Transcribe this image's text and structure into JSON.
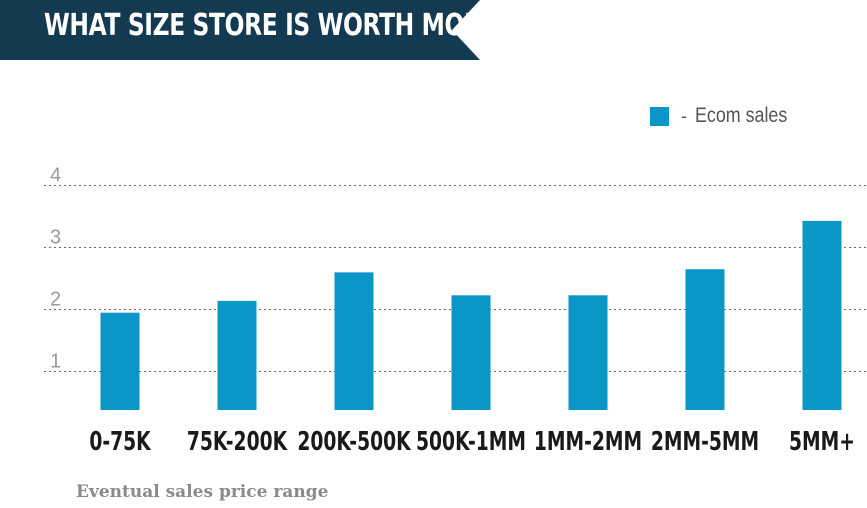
{
  "header": {
    "title": "WHAT SIZE STORE IS WORTH MORE?"
  },
  "colors": {
    "banner": "#143a52",
    "bar": "#0a97c8",
    "grid": "#6a6a6a",
    "tick": "#9a9a9a",
    "category": "#1a1a1a"
  },
  "chart_data": {
    "type": "bar",
    "title": "WHAT SIZE STORE IS WORTH MORE?",
    "xlabel": "Eventual sales price range",
    "ylabel": "",
    "categories": [
      "0-75K",
      "75K-200K",
      "200K-500K",
      "500K-1MM",
      "1MM-2MM",
      "2MM-5MM",
      "5MM+"
    ],
    "series": [
      {
        "name": "Ecom sales",
        "values": [
          1.95,
          2.14,
          2.6,
          2.23,
          2.23,
          2.65,
          3.43
        ]
      }
    ],
    "yticks": [
      "1",
      "2",
      "3",
      "4"
    ],
    "ylim": [
      0.38,
      4
    ],
    "grid": true,
    "legend_position": "top-right",
    "legend_marker": "-"
  }
}
